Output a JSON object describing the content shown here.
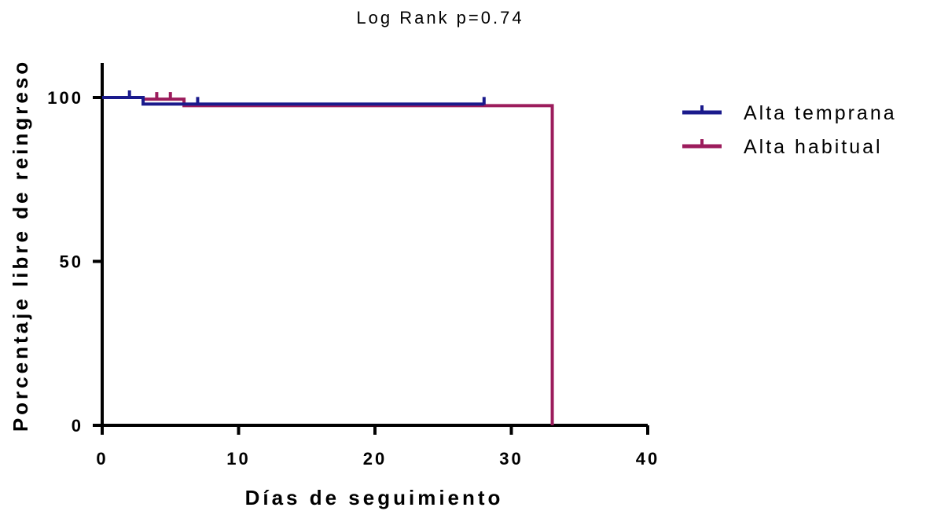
{
  "chart_data": {
    "type": "line",
    "title": "Log  Rank p=0.74",
    "xlabel": "Días de seguimiento",
    "ylabel": "Porcentaje libre de reingreso",
    "xlim": [
      0,
      40
    ],
    "ylim": [
      0,
      100
    ],
    "xticks": [
      0,
      10,
      20,
      30,
      40
    ],
    "yticks": [
      0,
      50,
      100
    ],
    "xtick_labels": [
      "0",
      "10",
      "20",
      "30",
      "40"
    ],
    "ytick_labels": [
      "0",
      "50",
      "100"
    ],
    "grid": false,
    "legend_position": "right",
    "series": [
      {
        "name": "Alta temprana",
        "color": "#1a1a8c",
        "step_x": [
          0,
          3,
          28
        ],
        "step_y": [
          100,
          98,
          98
        ],
        "censored": [
          [
            2,
            100
          ],
          [
            7,
            98
          ],
          [
            28,
            98
          ]
        ]
      },
      {
        "name": "Alta habitual",
        "color": "#9c1c5c",
        "step_x": [
          0,
          3,
          6,
          33,
          33
        ],
        "step_y": [
          100,
          99.5,
          97.5,
          97.5,
          0
        ],
        "censored": [
          [
            4,
            99.5
          ],
          [
            5,
            99.5
          ]
        ]
      }
    ]
  }
}
